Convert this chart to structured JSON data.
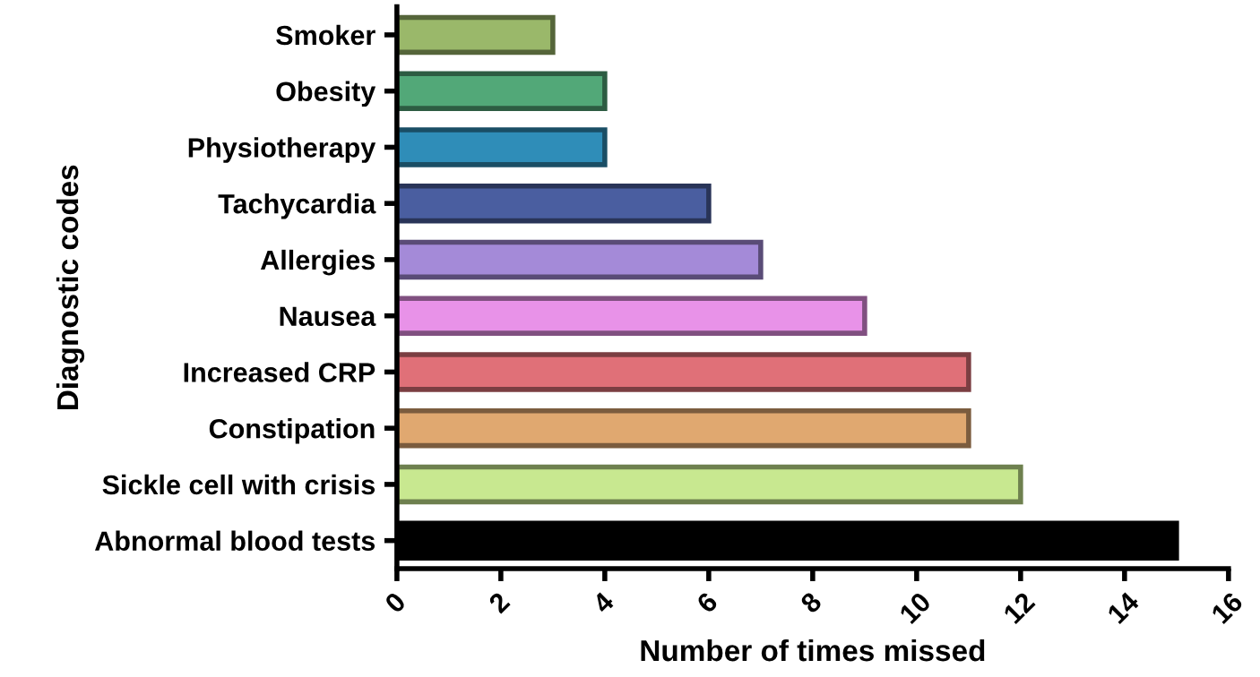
{
  "chart_data": {
    "type": "bar",
    "orientation": "horizontal",
    "xlabel": "Number of times missed",
    "ylabel": "Diagnostic codes",
    "categories": [
      "Smoker",
      "Obesity",
      "Physiotherapy",
      "Tachycardia",
      "Allergies",
      "Nausea",
      "Increased CRP",
      "Constipation",
      "Sickle cell with crisis",
      "Abnormal blood tests"
    ],
    "values": [
      3,
      4,
      4,
      6,
      7,
      9,
      11,
      11,
      12,
      15
    ],
    "colors": [
      "#9ab86a",
      "#52a878",
      "#2f8db8",
      "#4a5ea0",
      "#a48ad8",
      "#e892e8",
      "#e07078",
      "#e0a870",
      "#c8e890",
      "#000000"
    ],
    "xlim": [
      0,
      16
    ],
    "xticks": [
      0,
      2,
      4,
      6,
      8,
      10,
      12,
      14,
      16
    ],
    "grid": false,
    "legend": false
  }
}
